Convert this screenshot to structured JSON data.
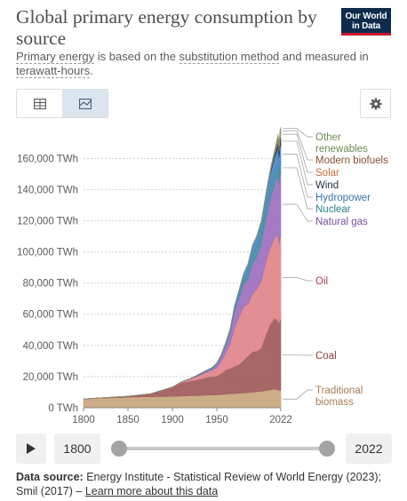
{
  "header": {
    "title": "Global primary energy consumption by source",
    "subtitle_parts": [
      {
        "text": "Primary energy",
        "dotted": true
      },
      {
        "text": " is based on the ",
        "dotted": false
      },
      {
        "text": "substitution method",
        "dotted": true
      },
      {
        "text": " and measured in ",
        "dotted": false
      },
      {
        "text": "terawatt-hours",
        "dotted": true
      },
      {
        "text": ".",
        "dotted": false
      }
    ],
    "logo_line1": "Our World",
    "logo_line2": "in Data"
  },
  "toolbar": {
    "tabs": [
      {
        "icon": "table-icon",
        "active": false
      },
      {
        "icon": "chart-icon",
        "active": true
      }
    ],
    "settings_icon": "gear-icon"
  },
  "chart_data": {
    "type": "area",
    "stacked": true,
    "x": [
      1800,
      1825,
      1850,
      1875,
      1900,
      1910,
      1920,
      1930,
      1940,
      1945,
      1950,
      1955,
      1960,
      1965,
      1970,
      1975,
      1980,
      1985,
      1990,
      1995,
      2000,
      2005,
      2010,
      2015,
      2019,
      2020,
      2021,
      2022
    ],
    "series": [
      {
        "name": "Traditional biomass",
        "color": "#c9a57e",
        "label_color": "#a67c52",
        "values": [
          5600,
          6200,
          6800,
          7100,
          7300,
          7500,
          7700,
          7900,
          8100,
          8200,
          8300,
          8500,
          8700,
          8900,
          9100,
          9300,
          9500,
          9700,
          10000,
          10300,
          10600,
          11000,
          11500,
          12000,
          11500,
          11200,
          11200,
          11100
        ]
      },
      {
        "name": "Coal",
        "color": "#9f5a5a",
        "label_color": "#8a3b3b",
        "values": [
          100,
          300,
          600,
          1800,
          5700,
          8500,
          9400,
          10200,
          11500,
          11800,
          12000,
          13500,
          15600,
          16200,
          17600,
          18400,
          20800,
          23500,
          25900,
          26100,
          27800,
          35500,
          42000,
          45500,
          44300,
          43200,
          45600,
          45400
        ]
      },
      {
        "name": "Oil",
        "color": "#e0848a",
        "label_color": "#b0394d",
        "values": [
          0,
          0,
          0,
          20,
          200,
          400,
          1200,
          2500,
          3500,
          4000,
          5400,
          7700,
          11000,
          16000,
          24800,
          30500,
          34500,
          33200,
          37100,
          39600,
          42600,
          46700,
          48800,
          51500,
          55000,
          50400,
          52500,
          54000
        ]
      },
      {
        "name": "Natural gas",
        "color": "#9c70bd",
        "label_color": "#7b4fa0",
        "values": [
          0,
          0,
          0,
          0,
          50,
          100,
          200,
          500,
          800,
          1200,
          2100,
          3100,
          4600,
          6900,
          10600,
          12400,
          14400,
          16500,
          19500,
          21000,
          24000,
          27400,
          31600,
          34800,
          38800,
          38300,
          40400,
          40100
        ]
      },
      {
        "name": "Nuclear",
        "color": "#3f8fa0",
        "label_color": "#2c7d8c",
        "values": [
          0,
          0,
          0,
          0,
          0,
          0,
          0,
          0,
          0,
          0,
          0,
          0,
          0,
          80,
          230,
          1050,
          2000,
          4000,
          5700,
          6400,
          7100,
          7300,
          7200,
          6800,
          7100,
          6800,
          7000,
          6700
        ]
      },
      {
        "name": "Hydropower",
        "color": "#4a86c5",
        "label_color": "#3a72b0",
        "values": [
          0,
          0,
          0,
          0,
          30,
          120,
          200,
          400,
          600,
          700,
          900,
          1200,
          1900,
          2500,
          3200,
          3800,
          4600,
          5100,
          5600,
          6400,
          7100,
          7600,
          8700,
          9700,
          10400,
          10600,
          10600,
          11000
        ]
      },
      {
        "name": "Wind",
        "color": "#203a60",
        "label_color": "#1e2f4d",
        "values": [
          0,
          0,
          0,
          0,
          0,
          0,
          0,
          0,
          0,
          0,
          0,
          0,
          0,
          0,
          0,
          0,
          0,
          0,
          10,
          20,
          80,
          270,
          880,
          2200,
          3800,
          4200,
          4800,
          5500
        ]
      },
      {
        "name": "Solar",
        "color": "#d9905a",
        "label_color": "#c56a30",
        "values": [
          0,
          0,
          0,
          0,
          0,
          0,
          0,
          0,
          0,
          0,
          0,
          0,
          0,
          0,
          0,
          0,
          0,
          0,
          0,
          0,
          5,
          10,
          100,
          680,
          1900,
          2200,
          2700,
          3400
        ]
      },
      {
        "name": "Modern biofuels",
        "color": "#a0624b",
        "label_color": "#8a4f2f",
        "values": [
          0,
          0,
          0,
          0,
          0,
          0,
          0,
          0,
          0,
          0,
          0,
          0,
          0,
          0,
          0,
          0,
          0,
          50,
          140,
          200,
          250,
          400,
          900,
          1100,
          1200,
          1100,
          1200,
          1200
        ]
      },
      {
        "name": "Other renewables",
        "color": "#7fa072",
        "label_color": "#6a8a55",
        "values": [
          0,
          0,
          0,
          0,
          0,
          0,
          0,
          0,
          0,
          0,
          0,
          0,
          50,
          100,
          140,
          180,
          250,
          330,
          430,
          560,
          650,
          800,
          1000,
          1300,
          1550,
          1600,
          1650,
          1700
        ]
      }
    ],
    "yticks": [
      0,
      20000,
      40000,
      60000,
      80000,
      100000,
      120000,
      140000,
      160000
    ],
    "ytick_labels": [
      "0 TWh",
      "20,000 TWh",
      "40,000 TWh",
      "60,000 TWh",
      "80,000 TWh",
      "100,000 TWh",
      "120,000 TWh",
      "140,000 TWh",
      "160,000 TWh"
    ],
    "xticks": [
      1800,
      1850,
      1900,
      1950,
      2022
    ],
    "xtick_labels": [
      "1800",
      "1850",
      "1900",
      "1950",
      "2022"
    ],
    "xlim": [
      1800,
      2022
    ],
    "ylim": [
      0,
      175000
    ],
    "grid": "horizontal-dotted",
    "legend": "right-inline-labels",
    "legend_labels": [
      {
        "series": "Other renewables",
        "lines": [
          "Other",
          "renewables"
        ]
      },
      {
        "series": "Modern biofuels",
        "lines": [
          "Modern biofuels"
        ]
      },
      {
        "series": "Solar",
        "lines": [
          "Solar"
        ]
      },
      {
        "series": "Wind",
        "lines": [
          "Wind"
        ]
      },
      {
        "series": "Hydropower",
        "lines": [
          "Hydropower"
        ]
      },
      {
        "series": "Nuclear",
        "lines": [
          "Nuclear"
        ]
      },
      {
        "series": "Natural gas",
        "lines": [
          "Natural gas"
        ]
      },
      {
        "series": "Oil",
        "lines": [
          "Oil"
        ]
      },
      {
        "series": "Coal",
        "lines": [
          "Coal"
        ]
      },
      {
        "series": "Traditional biomass",
        "lines": [
          "Traditional",
          "biomass"
        ]
      }
    ]
  },
  "timeline": {
    "start_year": "1800",
    "end_year": "2022",
    "range_start_fraction": 0,
    "range_end_fraction": 1,
    "play_icon": "play-icon"
  },
  "footer": {
    "source_label": "Data source:",
    "source_text": " Energy Institute - Statistical Review of World Energy (2023); Smil (2017) – ",
    "learn_more": "Learn more about this data"
  }
}
